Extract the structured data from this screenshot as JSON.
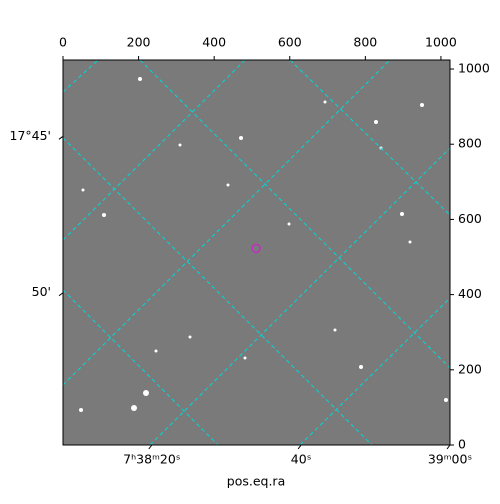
{
  "chart_data": {
    "type": "image",
    "xlabel": "pos.eq.ra",
    "xlim": [
      0,
      1024
    ],
    "ylim": [
      0,
      1024
    ],
    "xticks": [
      0,
      200,
      400,
      600,
      800,
      1000
    ],
    "yticks": [
      0,
      200,
      400,
      600,
      800,
      1000
    ],
    "ra_ticks": [
      {
        "value": 235,
        "label": "7ʰ38ᵐ20ˢ"
      },
      {
        "value": 630,
        "label": "40ˢ"
      },
      {
        "value": 1024,
        "label": "39ᵐ00ˢ"
      }
    ],
    "dec_ticks": [
      {
        "value": 821,
        "label": "17°45'"
      },
      {
        "value": 405,
        "label": "50'"
      }
    ],
    "marker": {
      "x": 511,
      "y": 523,
      "color": "#c030c0"
    }
  }
}
